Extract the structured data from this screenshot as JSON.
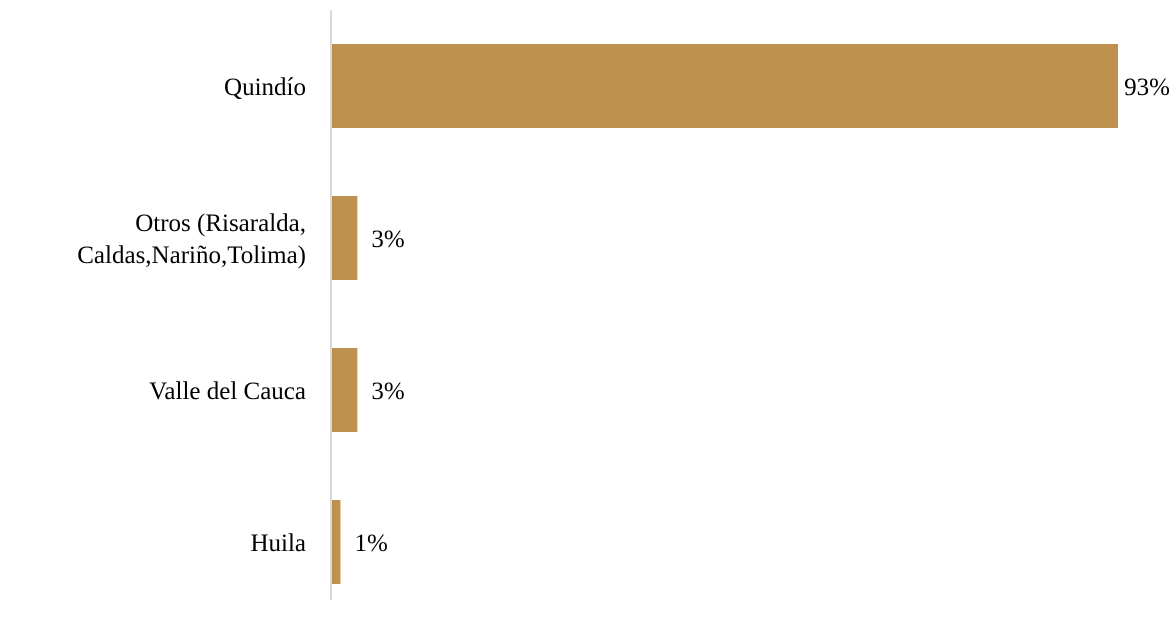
{
  "chart_data": {
    "type": "bar",
    "orientation": "horizontal",
    "categories": [
      [
        "Quindío"
      ],
      [
        "Otros (Risaralda,",
        "Caldas,Nariño,Tolima)"
      ],
      [
        "Valle del Cauca"
      ],
      [
        "Huila"
      ]
    ],
    "values": [
      93,
      3,
      3,
      1
    ],
    "data_labels": [
      "93%",
      "3%",
      "3%",
      "1%"
    ],
    "value_unit": "%",
    "title": "",
    "xlabel": "",
    "ylabel": "",
    "xlim": [
      0,
      93
    ],
    "grid": false,
    "legend": "none",
    "colors": {
      "bar": "#BF914F",
      "axis": "#D9D9D9",
      "text": "#000000"
    }
  }
}
